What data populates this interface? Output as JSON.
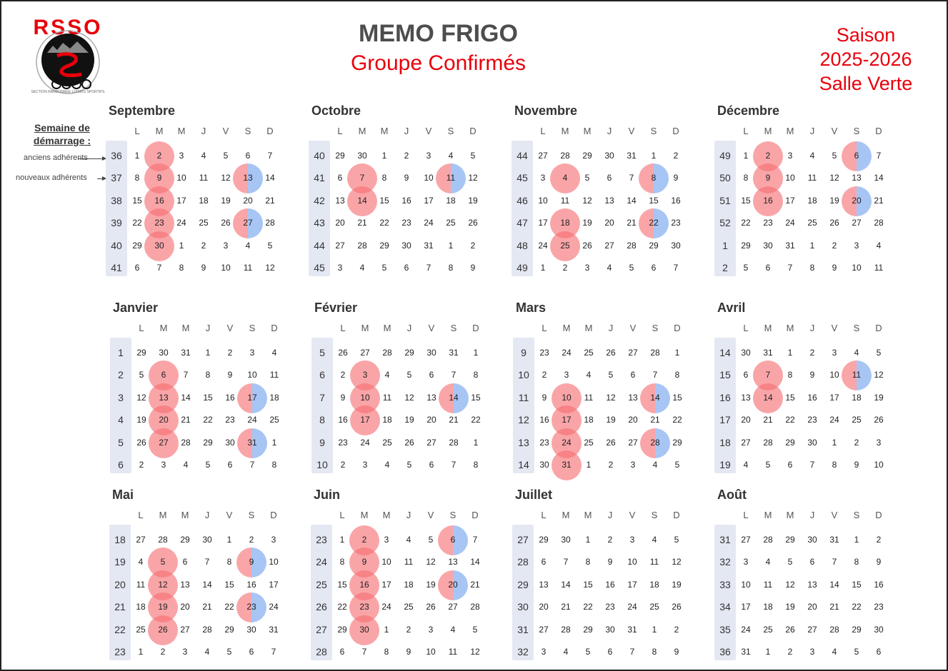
{
  "header": {
    "title": "MEMO FRIGO",
    "subtitle": "Groupe Confirmés",
    "season_lines": [
      "Saison",
      "2025-2026",
      "Salle Verte"
    ]
  },
  "logo": {
    "text": "RSSO",
    "caption": "SECTION RANDONNEE LOISIRS SPORTIFS",
    "icon": "cyclist-logo-icon",
    "colors": {
      "red": "#e8000b",
      "black": "#111111"
    }
  },
  "legend": {
    "title_lines": [
      "Semaine de",
      "démarrage :"
    ],
    "anciens": "anciens adhérents",
    "nouveaux": "nouveaux adhérents"
  },
  "day_headers": [
    "L",
    "M",
    "M",
    "J",
    "V",
    "S",
    "D"
  ],
  "colors": {
    "red_circle": "#f66e73",
    "blue_circle": "#8ab2f0",
    "week_band": "#e4e8f3",
    "title_red": "#e8000b"
  },
  "months": [
    {
      "name": "Septembre",
      "start": "2025-09-01",
      "weeks": [
        36,
        37,
        38,
        39,
        40,
        41
      ],
      "days": [
        [
          1,
          2,
          3,
          4,
          5,
          6,
          7
        ],
        [
          8,
          9,
          10,
          11,
          12,
          13,
          14
        ],
        [
          15,
          16,
          17,
          18,
          19,
          20,
          21
        ],
        [
          22,
          23,
          24,
          25,
          26,
          27,
          28
        ],
        [
          29,
          30,
          1,
          2,
          3,
          4,
          5
        ],
        [
          6,
          7,
          8,
          9,
          10,
          11,
          12
        ]
      ],
      "red": [
        2,
        9,
        16,
        23,
        30
      ],
      "split": [
        13,
        27
      ]
    },
    {
      "name": "Octobre",
      "start": "2025-09-29",
      "weeks": [
        40,
        41,
        42,
        43,
        44,
        45
      ],
      "days": [
        [
          29,
          30,
          1,
          2,
          3,
          4,
          5
        ],
        [
          6,
          7,
          8,
          9,
          10,
          11,
          12
        ],
        [
          13,
          14,
          15,
          16,
          17,
          18,
          19
        ],
        [
          20,
          21,
          22,
          23,
          24,
          25,
          26
        ],
        [
          27,
          28,
          29,
          30,
          31,
          1,
          2
        ],
        [
          3,
          4,
          5,
          6,
          7,
          8,
          9
        ]
      ],
      "red": [
        7,
        14
      ],
      "split": [
        11
      ]
    },
    {
      "name": "Novembre",
      "start": "2025-10-27",
      "weeks": [
        44,
        45,
        46,
        47,
        48,
        49
      ],
      "days": [
        [
          27,
          28,
          29,
          30,
          31,
          1,
          2
        ],
        [
          3,
          4,
          5,
          6,
          7,
          8,
          9
        ],
        [
          10,
          11,
          12,
          13,
          14,
          15,
          16
        ],
        [
          17,
          18,
          19,
          20,
          21,
          22,
          23
        ],
        [
          24,
          25,
          26,
          27,
          28,
          29,
          30
        ],
        [
          1,
          2,
          3,
          4,
          5,
          6,
          7
        ]
      ],
      "red": [
        4,
        18,
        25
      ],
      "split": [
        8,
        22
      ]
    },
    {
      "name": "Décembre",
      "start": "2025-12-01",
      "weeks": [
        49,
        50,
        51,
        52,
        1,
        2
      ],
      "days": [
        [
          1,
          2,
          3,
          4,
          5,
          6,
          7
        ],
        [
          8,
          9,
          10,
          11,
          12,
          13,
          14
        ],
        [
          15,
          16,
          17,
          18,
          19,
          20,
          21
        ],
        [
          22,
          23,
          24,
          25,
          26,
          27,
          28
        ],
        [
          29,
          30,
          31,
          1,
          2,
          3,
          4
        ],
        [
          5,
          6,
          7,
          8,
          9,
          10,
          11
        ]
      ],
      "red": [
        2,
        9,
        16
      ],
      "split": [
        6,
        20
      ]
    },
    {
      "name": "Janvier",
      "start": "2025-12-29",
      "weeks": [
        1,
        2,
        3,
        4,
        5,
        6
      ],
      "days": [
        [
          29,
          30,
          31,
          1,
          2,
          3,
          4
        ],
        [
          5,
          6,
          7,
          8,
          9,
          10,
          11
        ],
        [
          12,
          13,
          14,
          15,
          16,
          17,
          18
        ],
        [
          19,
          20,
          21,
          22,
          23,
          24,
          25
        ],
        [
          26,
          27,
          28,
          29,
          30,
          31,
          1
        ],
        [
          2,
          3,
          4,
          5,
          6,
          7,
          8
        ]
      ],
      "red": [
        6,
        13,
        20,
        27
      ],
      "split": [
        17,
        31
      ]
    },
    {
      "name": "Février",
      "start": "2026-01-26",
      "weeks": [
        5,
        6,
        7,
        8,
        9,
        10
      ],
      "days": [
        [
          26,
          27,
          28,
          29,
          30,
          31,
          1
        ],
        [
          2,
          3,
          4,
          5,
          6,
          7,
          8
        ],
        [
          9,
          10,
          11,
          12,
          13,
          14,
          15
        ],
        [
          16,
          17,
          18,
          19,
          20,
          21,
          22
        ],
        [
          23,
          24,
          25,
          26,
          27,
          28,
          1
        ],
        [
          2,
          3,
          4,
          5,
          6,
          7,
          8
        ]
      ],
      "red": [
        3,
        10,
        17
      ],
      "split": [
        14
      ]
    },
    {
      "name": "Mars",
      "start": "2026-02-23",
      "weeks": [
        9,
        10,
        11,
        12,
        13,
        14
      ],
      "days": [
        [
          23,
          24,
          25,
          26,
          27,
          28,
          1
        ],
        [
          2,
          3,
          4,
          5,
          6,
          7,
          8
        ],
        [
          9,
          10,
          11,
          12,
          13,
          14,
          15
        ],
        [
          16,
          17,
          18,
          19,
          20,
          21,
          22
        ],
        [
          23,
          24,
          25,
          26,
          27,
          28,
          29
        ],
        [
          30,
          31,
          1,
          2,
          3,
          4,
          5
        ]
      ],
      "red": [
        10,
        17,
        24,
        31
      ],
      "split": [
        14,
        28
      ]
    },
    {
      "name": "Avril",
      "start": "2026-03-30",
      "weeks": [
        14,
        15,
        16,
        17,
        18,
        19
      ],
      "days": [
        [
          30,
          31,
          1,
          2,
          3,
          4,
          5
        ],
        [
          6,
          7,
          8,
          9,
          10,
          11,
          12
        ],
        [
          13,
          14,
          15,
          16,
          17,
          18,
          19
        ],
        [
          20,
          21,
          22,
          23,
          24,
          25,
          26
        ],
        [
          27,
          28,
          29,
          30,
          1,
          2,
          3
        ],
        [
          4,
          5,
          6,
          7,
          8,
          9,
          10
        ]
      ],
      "red": [
        7,
        14
      ],
      "split": [
        11
      ]
    },
    {
      "name": "Mai",
      "start": "2026-04-27",
      "weeks": [
        18,
        19,
        20,
        21,
        22,
        23
      ],
      "days": [
        [
          27,
          28,
          29,
          30,
          1,
          2,
          3
        ],
        [
          4,
          5,
          6,
          7,
          8,
          9,
          10
        ],
        [
          11,
          12,
          13,
          14,
          15,
          16,
          17
        ],
        [
          18,
          19,
          20,
          21,
          22,
          23,
          24
        ],
        [
          25,
          26,
          27,
          28,
          29,
          30,
          31
        ],
        [
          1,
          2,
          3,
          4,
          5,
          6,
          7
        ]
      ],
      "red": [
        5,
        12,
        19,
        26
      ],
      "split": [
        9,
        23
      ]
    },
    {
      "name": "Juin",
      "start": "2026-06-01",
      "weeks": [
        23,
        24,
        25,
        26,
        27,
        28
      ],
      "days": [
        [
          1,
          2,
          3,
          4,
          5,
          6,
          7
        ],
        [
          8,
          9,
          10,
          11,
          12,
          13,
          14
        ],
        [
          15,
          16,
          17,
          18,
          19,
          20,
          21
        ],
        [
          22,
          23,
          24,
          25,
          26,
          27,
          28
        ],
        [
          29,
          30,
          1,
          2,
          3,
          4,
          5
        ],
        [
          6,
          7,
          8,
          9,
          10,
          11,
          12
        ]
      ],
      "red": [
        2,
        9,
        16,
        23,
        30
      ],
      "split": [
        6,
        20
      ]
    },
    {
      "name": "Juillet",
      "start": "2026-06-29",
      "weeks": [
        27,
        28,
        29,
        30,
        31,
        32
      ],
      "days": [
        [
          29,
          30,
          1,
          2,
          3,
          4,
          5
        ],
        [
          6,
          7,
          8,
          9,
          10,
          11,
          12
        ],
        [
          13,
          14,
          15,
          16,
          17,
          18,
          19
        ],
        [
          20,
          21,
          22,
          23,
          24,
          25,
          26
        ],
        [
          27,
          28,
          29,
          30,
          31,
          1,
          2
        ],
        [
          3,
          4,
          5,
          6,
          7,
          8,
          9
        ]
      ],
      "red": [],
      "split": []
    },
    {
      "name": "Août",
      "start": "2026-07-27",
      "weeks": [
        31,
        32,
        33,
        34,
        35,
        36
      ],
      "days": [
        [
          27,
          28,
          29,
          30,
          31,
          1,
          2
        ],
        [
          3,
          4,
          5,
          6,
          7,
          8,
          9
        ],
        [
          10,
          11,
          12,
          13,
          14,
          15,
          16
        ],
        [
          17,
          18,
          19,
          20,
          21,
          22,
          23
        ],
        [
          24,
          25,
          26,
          27,
          28,
          29,
          30
        ],
        [
          31,
          1,
          2,
          3,
          4,
          5,
          6
        ]
      ],
      "red": [],
      "split": []
    }
  ]
}
